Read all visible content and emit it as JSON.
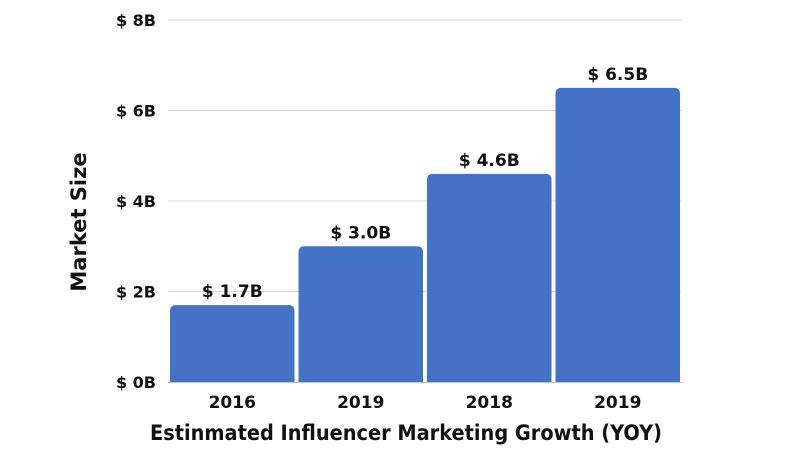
{
  "chart_data": {
    "type": "bar",
    "title": "",
    "xlabel": "Estinmated Influencer Marketing Growth (YOY)",
    "ylabel": "Market Size",
    "categories": [
      "2016",
      "2019",
      "2018",
      "2019"
    ],
    "values": [
      1.7,
      3.0,
      4.6,
      6.5
    ],
    "data_labels": [
      "$ 1.7B",
      "$ 3.0B",
      "$ 4.6B",
      "$ 6.5B"
    ],
    "ylim": [
      0,
      8
    ],
    "yticks": [
      0,
      2,
      4,
      6,
      8
    ],
    "ytick_labels": [
      "$ 0B",
      "$ 2B",
      "$ 4B",
      "$ 6B",
      "$ 8B"
    ],
    "grid": true,
    "legend": "none",
    "colors": {
      "bar": "#4472c4",
      "grid": "#d9d9d9",
      "axis": "#bfbfbf",
      "text": "#111111"
    }
  }
}
